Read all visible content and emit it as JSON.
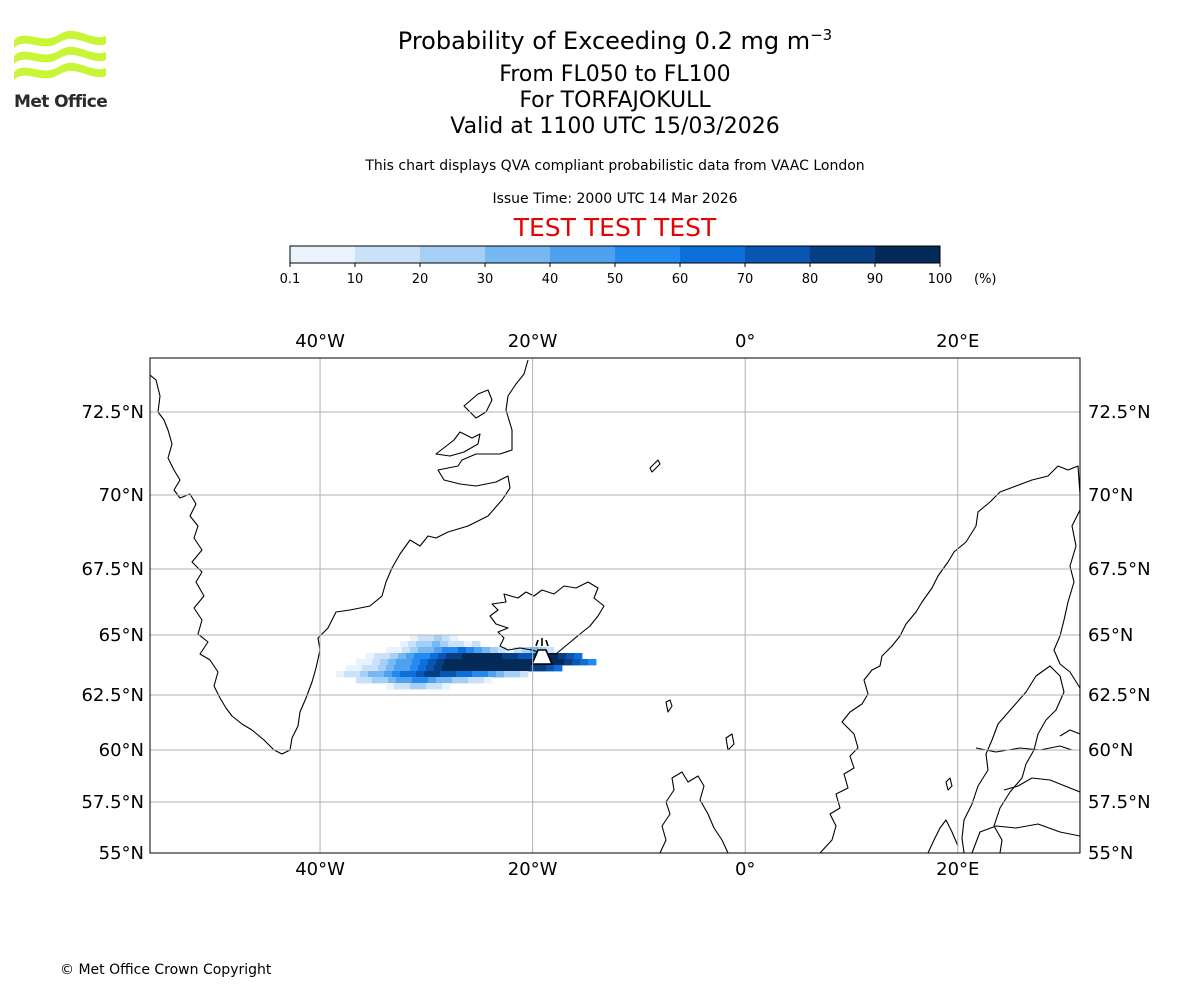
{
  "logo": {
    "text": "Met Office",
    "accent": "#c9f634"
  },
  "header": {
    "title": "Probability of Exceeding 0.2 mg m",
    "title_sup": "−3",
    "flight_levels": "From FL050 to FL100",
    "volcano": "For TORFAJOKULL",
    "valid": "Valid at 1100 UTC 15/03/2026",
    "description": "This chart displays QVA compliant probabilistic data from VAAC London",
    "issue_time": "Issue Time: 2000 UTC 14 Mar 2026",
    "test_banner": "TEST TEST TEST",
    "test_color": "#e60000"
  },
  "colorbar": {
    "ticks": [
      "0.1",
      "10",
      "20",
      "30",
      "40",
      "50",
      "60",
      "70",
      "80",
      "90",
      "100"
    ],
    "unit": "(%)",
    "colors": [
      "#e8f3fd",
      "#c9e2f9",
      "#a6cff6",
      "#78b8f2",
      "#4ea1ef",
      "#238af0",
      "#0d6fdb",
      "#0856b2",
      "#063f85",
      "#042a57"
    ]
  },
  "map": {
    "projection": "PlateCarree",
    "lon_range": [
      -56,
      31.5
    ],
    "lat_range": [
      55,
      74
    ],
    "lon_ticks": [
      {
        "value": -40,
        "label": "40°W"
      },
      {
        "value": -20,
        "label": "20°W"
      },
      {
        "value": 0,
        "label": "0°"
      },
      {
        "value": 20,
        "label": "20°E"
      }
    ],
    "lat_ticks": [
      {
        "value": 72.5,
        "label": "72.5°N"
      },
      {
        "value": 70,
        "label": "70°N"
      },
      {
        "value": 67.5,
        "label": "67.5°N"
      },
      {
        "value": 65,
        "label": "65°N"
      },
      {
        "value": 62.5,
        "label": "62.5°N"
      },
      {
        "value": 60,
        "label": "60°N"
      },
      {
        "value": 57.5,
        "label": "57.5°N"
      },
      {
        "value": 55,
        "label": "55°N"
      }
    ],
    "grid": true,
    "volcano_marker": {
      "name": "TORFAJOKULL",
      "lon": -19.1,
      "lat": 63.9
    }
  },
  "footer": {
    "copyright": "© Met Office Crown Copyright"
  }
}
